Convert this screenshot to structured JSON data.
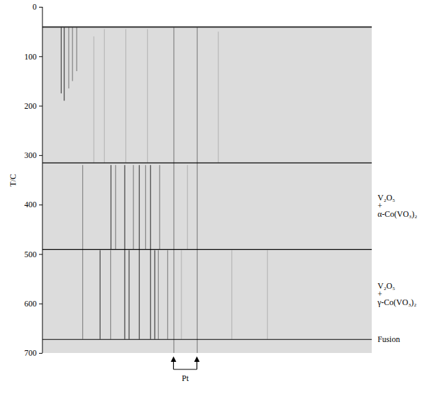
{
  "chart_data": {
    "type": "thermodiffractogram",
    "y_label": "T/C",
    "ylim": [
      0,
      700
    ],
    "yticks": [
      0,
      100,
      200,
      300,
      400,
      500,
      600,
      700
    ],
    "xlim": [
      0,
      100
    ],
    "tick_labels": "y",
    "film_start": 40,
    "lines": [
      {
        "x": 5.6,
        "t_start": 40,
        "t_end": 175,
        "intensity": 3
      },
      {
        "x": 6.5,
        "t_start": 40,
        "t_end": 190,
        "intensity": 3
      },
      {
        "x": 7.9,
        "t_start": 40,
        "t_end": 165,
        "intensity": 2
      },
      {
        "x": 9.0,
        "t_start": 40,
        "t_end": 150,
        "intensity": 2
      },
      {
        "x": 10.3,
        "t_start": 40,
        "t_end": 130,
        "intensity": 2
      },
      {
        "x": 15.5,
        "t_start": 60,
        "t_end": 315,
        "intensity": 1
      },
      {
        "x": 18.7,
        "t_start": 45,
        "t_end": 315,
        "intensity": 1
      },
      {
        "x": 25.2,
        "t_start": 45,
        "t_end": 315,
        "intensity": 1
      },
      {
        "x": 31.8,
        "t_start": 45,
        "t_end": 315,
        "intensity": 1
      },
      {
        "x": 53.3,
        "t_start": 50,
        "t_end": 315,
        "intensity": 1
      },
      {
        "x": 39.8,
        "t_start": 40,
        "t_end": 700,
        "intensity": 2
      },
      {
        "x": 46.9,
        "t_start": 40,
        "t_end": 700,
        "intensity": 2
      },
      {
        "x": 12.1,
        "t_start": 320,
        "t_end": 672,
        "intensity": 2
      },
      {
        "x": 20.7,
        "t_start": 320,
        "t_end": 490,
        "intensity": 3
      },
      {
        "x": 22.1,
        "t_start": 320,
        "t_end": 490,
        "intensity": 2
      },
      {
        "x": 24.9,
        "t_start": 320,
        "t_end": 672,
        "intensity": 3
      },
      {
        "x": 27.5,
        "t_start": 320,
        "t_end": 490,
        "intensity": 2
      },
      {
        "x": 29.3,
        "t_start": 320,
        "t_end": 672,
        "intensity": 3
      },
      {
        "x": 31.2,
        "t_start": 320,
        "t_end": 490,
        "intensity": 2
      },
      {
        "x": 32.7,
        "t_start": 320,
        "t_end": 672,
        "intensity": 3
      },
      {
        "x": 35.5,
        "t_start": 320,
        "t_end": 490,
        "intensity": 2
      },
      {
        "x": 43.9,
        "t_start": 320,
        "t_end": 490,
        "intensity": 1
      },
      {
        "x": 17.4,
        "t_start": 492,
        "t_end": 672,
        "intensity": 3
      },
      {
        "x": 20.6,
        "t_start": 492,
        "t_end": 672,
        "intensity": 2
      },
      {
        "x": 26.2,
        "t_start": 492,
        "t_end": 672,
        "intensity": 3
      },
      {
        "x": 34.0,
        "t_start": 492,
        "t_end": 672,
        "intensity": 3
      },
      {
        "x": 35.1,
        "t_start": 492,
        "t_end": 672,
        "intensity": 2
      },
      {
        "x": 37.9,
        "t_start": 492,
        "t_end": 672,
        "intensity": 2
      },
      {
        "x": 42.1,
        "t_start": 492,
        "t_end": 672,
        "intensity": 1
      },
      {
        "x": 57.4,
        "t_start": 492,
        "t_end": 672,
        "intensity": 1
      },
      {
        "x": 68.2,
        "t_start": 492,
        "t_end": 672,
        "intensity": 1
      }
    ],
    "boundaries": [
      315,
      490
    ],
    "phases": [
      {
        "t_start": 315,
        "t_end": 490,
        "label_lines": [
          "V₂O₅",
          "+",
          "α-Co(VO₃)₂"
        ]
      },
      {
        "t_start": 490,
        "t_end": 672,
        "label_lines": [
          "V₂O₅",
          "+",
          "γ-Co(VO₃)₂"
        ]
      }
    ],
    "fusion": {
      "t": 672,
      "label": "Fusion"
    },
    "pt": {
      "label": "Pt",
      "x": [
        39.8,
        46.9
      ]
    }
  }
}
